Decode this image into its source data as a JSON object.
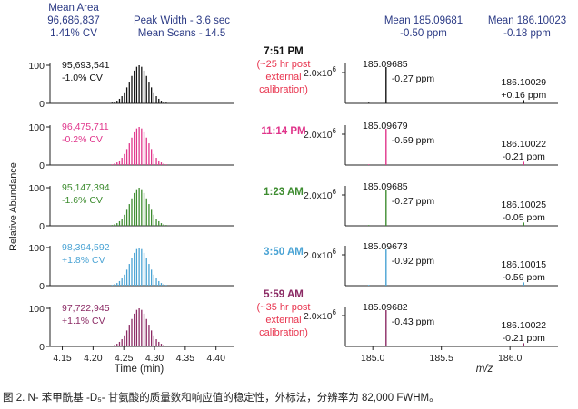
{
  "header": {
    "mean_area_label": "Mean Area",
    "mean_area_value": "96,686,837",
    "mean_area_cv": "1.41% CV",
    "peak_width": "Peak Width - 3.6 sec",
    "mean_scans": "Mean Scans - 14.5",
    "mass1_mean": "Mean 185.09681",
    "mass1_ppm": "-0.50 ppm",
    "mass2_mean": "Mean 186.10023",
    "mass2_ppm": "-0.18 ppm"
  },
  "colors": {
    "black": "#111111",
    "magenta": "#e0358b",
    "green": "#3d8c2f",
    "blue": "#4aa3d4",
    "purple": "#8b2a64",
    "time_red": "#e8344e",
    "header_navy": "#2b3a85"
  },
  "axes": {
    "ylabel": "Relative Abundance",
    "time_xlabel": "Time (min)",
    "mz_xlabel": "m/z",
    "time_ticks": [
      "4.15",
      "4.20",
      "4.25",
      "4.30",
      "4.35",
      "4.40"
    ],
    "mz_ticks": [
      "185.0",
      "185.5",
      "186.0"
    ],
    "y_tick_top": "100",
    "y_tick_bottom": "0",
    "mz_y_tick_base": "2.0x10",
    "mz_y_tick_exp": "6"
  },
  "caption": "图 2. N- 苯甲酰基 -D₅- 甘氨酸的质量数和响应值的稳定性，外标法，分辨率为 82,000 FWHM。",
  "chart_data": [
    {
      "type": "bar",
      "panel": "chromatogram",
      "xlabel": "Time (min)",
      "ylabel": "Relative Abundance",
      "xlim": [
        4.13,
        4.43
      ],
      "ylim": [
        0,
        100
      ],
      "peak_apex_min": 4.275,
      "scan_interval_min": 0.004,
      "series": [
        {
          "area": "95,693,541",
          "cv": "-1.0% CV",
          "color": "#111111",
          "values": [
            2,
            4,
            7,
            12,
            19,
            29,
            42,
            57,
            72,
            86,
            96,
            100,
            96,
            86,
            72,
            57,
            42,
            29,
            19,
            12,
            7,
            4,
            2
          ]
        },
        {
          "area": "96,475,711",
          "cv": "-0.2% CV",
          "color": "#e0358b",
          "values": [
            2,
            4,
            7,
            12,
            19,
            29,
            42,
            57,
            72,
            86,
            96,
            100,
            96,
            86,
            72,
            57,
            42,
            29,
            19,
            12,
            7,
            4,
            2
          ]
        },
        {
          "area": "95,147,394",
          "cv": "-1.6% CV",
          "color": "#3d8c2f",
          "values": [
            2,
            4,
            7,
            12,
            19,
            29,
            42,
            57,
            72,
            86,
            96,
            100,
            96,
            86,
            72,
            57,
            42,
            29,
            19,
            12,
            7,
            4,
            2
          ]
        },
        {
          "area": "98,394,592",
          "cv": "+1.8% CV",
          "color": "#4aa3d4",
          "values": [
            2,
            4,
            7,
            12,
            19,
            29,
            42,
            57,
            72,
            86,
            96,
            100,
            96,
            86,
            72,
            57,
            42,
            29,
            19,
            12,
            7,
            4,
            2
          ]
        },
        {
          "area": "97,722,945",
          "cv": "+1.1% CV",
          "color": "#8b2a64",
          "values": [
            2,
            4,
            7,
            12,
            19,
            29,
            42,
            57,
            72,
            86,
            96,
            100,
            96,
            86,
            72,
            57,
            42,
            29,
            19,
            12,
            7,
            4,
            2
          ]
        }
      ]
    },
    {
      "type": "bar",
      "panel": "mass-spectrum",
      "xlabel": "m/z",
      "xlim": [
        184.8,
        186.35
      ],
      "series": [
        {
          "time": "7:51 PM",
          "note": [
            "(~25 hr post",
            "external",
            "calibration)"
          ],
          "color": "#111111",
          "peaks": [
            {
              "mz": 185.09685,
              "rel": 100,
              "mz_label": "185.09685",
              "ppm": "-0.27 ppm"
            },
            {
              "mz": 186.10029,
              "rel": 9,
              "mz_label": "186.10029",
              "ppm": "+0.16 ppm"
            },
            {
              "mz": 184.97,
              "rel": 2
            }
          ]
        },
        {
          "time": "11:14 PM",
          "note": [],
          "color": "#e0358b",
          "peaks": [
            {
              "mz": 185.09679,
              "rel": 100,
              "mz_label": "185.09679",
              "ppm": "-0.59 ppm"
            },
            {
              "mz": 186.10022,
              "rel": 9,
              "mz_label": "186.10022",
              "ppm": "-0.21 ppm"
            },
            {
              "mz": 184.97,
              "rel": 2
            }
          ]
        },
        {
          "time": "1:23 AM",
          "note": [],
          "color": "#3d8c2f",
          "peaks": [
            {
              "mz": 185.09685,
              "rel": 100,
              "mz_label": "185.09685",
              "ppm": "-0.27 ppm"
            },
            {
              "mz": 186.10025,
              "rel": 9,
              "mz_label": "186.10025",
              "ppm": "-0.05 ppm"
            },
            {
              "mz": 184.97,
              "rel": 2
            }
          ]
        },
        {
          "time": "3:50 AM",
          "note": [],
          "color": "#4aa3d4",
          "peaks": [
            {
              "mz": 185.09673,
              "rel": 100,
              "mz_label": "185.09673",
              "ppm": "-0.92 ppm"
            },
            {
              "mz": 186.10015,
              "rel": 9,
              "mz_label": "186.10015",
              "ppm": "-0.59 ppm"
            },
            {
              "mz": 184.97,
              "rel": 2
            }
          ]
        },
        {
          "time": "5:59 AM",
          "note": [
            "(~35 hr post",
            "external",
            "calibration)"
          ],
          "color": "#8b2a64",
          "peaks": [
            {
              "mz": 185.09682,
              "rel": 100,
              "mz_label": "185.09682",
              "ppm": "-0.43 ppm"
            },
            {
              "mz": 186.10022,
              "rel": 9,
              "mz_label": "186.10022",
              "ppm": "-0.21 ppm"
            },
            {
              "mz": 184.97,
              "rel": 2
            }
          ]
        }
      ]
    }
  ]
}
